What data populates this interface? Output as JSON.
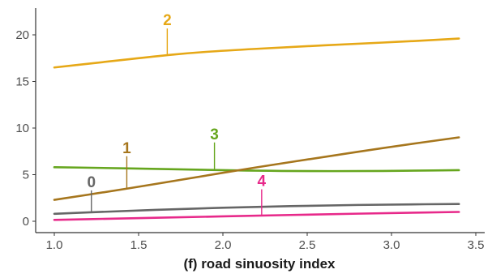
{
  "chart_data": {
    "type": "line",
    "title": "",
    "xlabel": "(f)  road sinuosity index",
    "ylabel": "",
    "xlim": [
      0.95,
      3.5
    ],
    "ylim": [
      -1.2,
      22.5
    ],
    "x_ticks": [
      1.0,
      1.5,
      2.0,
      2.5,
      3.0,
      3.5
    ],
    "x_tick_labels": [
      "1.0",
      "1.5",
      "2.0",
      "2.5",
      "3.0",
      "3.5"
    ],
    "y_ticks": [
      0,
      5,
      10,
      15,
      20
    ],
    "y_tick_labels": [
      "0",
      "5",
      "10",
      "15",
      "20"
    ],
    "grid": false,
    "legend": "inline labels",
    "series": [
      {
        "name": "2",
        "color": "#E6A817",
        "x": [
          1.0,
          1.3,
          1.6,
          1.8,
          2.0,
          2.4,
          2.8,
          3.1,
          3.4
        ],
        "y": [
          16.5,
          17.1,
          17.7,
          18.05,
          18.3,
          18.7,
          19.05,
          19.3,
          19.6
        ],
        "label_at": [
          1.67,
          17.9
        ]
      },
      {
        "name": "3",
        "color": "#66A61E",
        "x": [
          1.0,
          1.3,
          1.6,
          1.95,
          2.2,
          2.5,
          2.8,
          3.1,
          3.4
        ],
        "y": [
          5.8,
          5.72,
          5.62,
          5.5,
          5.42,
          5.38,
          5.38,
          5.42,
          5.48
        ],
        "label_at": [
          1.95,
          5.5
        ]
      },
      {
        "name": "1",
        "color": "#A6761D",
        "x": [
          1.0,
          1.4,
          1.8,
          2.2,
          2.6,
          3.0,
          3.4
        ],
        "y": [
          2.3,
          3.4,
          4.6,
          5.8,
          6.9,
          8.0,
          9.0
        ],
        "label_at": [
          1.43,
          3.5
        ]
      },
      {
        "name": "0",
        "color": "#666666",
        "x": [
          1.0,
          1.4,
          1.8,
          2.2,
          2.6,
          3.0,
          3.4
        ],
        "y": [
          0.8,
          1.1,
          1.35,
          1.55,
          1.7,
          1.8,
          1.85
        ],
        "label_at": [
          1.22,
          1.05
        ]
      },
      {
        "name": "4",
        "color": "#E7298A",
        "x": [
          1.0,
          1.4,
          1.8,
          2.2,
          2.6,
          3.0,
          3.4
        ],
        "y": [
          0.15,
          0.3,
          0.45,
          0.6,
          0.75,
          0.88,
          1.0
        ],
        "label_at": [
          2.23,
          0.65
        ]
      }
    ]
  }
}
